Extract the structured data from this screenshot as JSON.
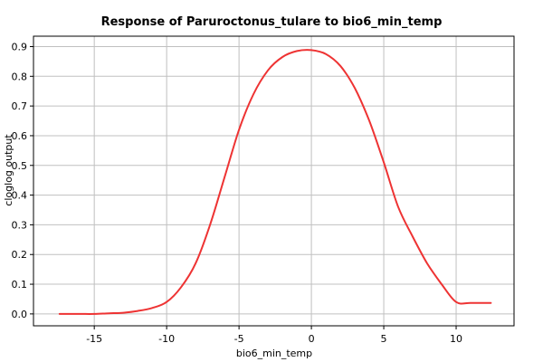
{
  "chart_data": {
    "type": "line",
    "title": "Response of Paruroctonus_tulare to bio6_min_temp",
    "xlabel": "bio6_min_temp",
    "ylabel": "cloglog output",
    "xlim": [
      -19.2,
      14.0
    ],
    "ylim": [
      -0.04,
      0.935
    ],
    "x_ticks": [
      -15,
      -10,
      -5,
      0,
      5,
      10
    ],
    "y_ticks": [
      0.0,
      0.1,
      0.2,
      0.3,
      0.4,
      0.5,
      0.6,
      0.7,
      0.8,
      0.9
    ],
    "x_tick_labels": [
      "-15",
      "-10",
      "-5",
      "0",
      "5",
      "10"
    ],
    "y_tick_labels": [
      "0.0",
      "0.1",
      "0.2",
      "0.3",
      "0.4",
      "0.5",
      "0.6",
      "0.7",
      "0.8",
      "0.9"
    ],
    "grid": true,
    "series": [
      {
        "color": "#ee3333",
        "x": [
          -17.4,
          -16.0,
          -15.0,
          -14.0,
          -13.0,
          -12.0,
          -11.0,
          -10.0,
          -9.0,
          -8.0,
          -7.0,
          -6.0,
          -5.0,
          -4.0,
          -3.0,
          -2.0,
          -1.0,
          0.0,
          1.0,
          2.0,
          3.0,
          4.0,
          5.0,
          6.0,
          7.0,
          8.0,
          9.0,
          10.0,
          11.0,
          12.4
        ],
        "y": [
          0.0,
          0.0,
          0.0,
          0.002,
          0.004,
          0.01,
          0.02,
          0.04,
          0.09,
          0.17,
          0.3,
          0.46,
          0.62,
          0.74,
          0.82,
          0.865,
          0.885,
          0.888,
          0.875,
          0.835,
          0.76,
          0.65,
          0.51,
          0.36,
          0.26,
          0.17,
          0.1,
          0.04,
          0.037,
          0.037
        ]
      }
    ]
  }
}
